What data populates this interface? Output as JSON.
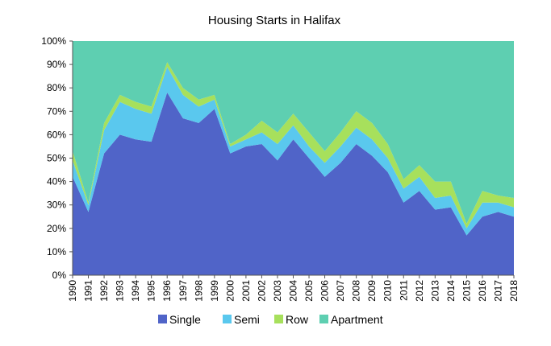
{
  "chart_data": {
    "type": "area",
    "stacked": true,
    "title": "Housing Starts in Halifax",
    "x": [
      "1990",
      "1991",
      "1992",
      "1993",
      "1994",
      "1995",
      "1996",
      "1997",
      "1998",
      "1999",
      "2000",
      "2001",
      "2002",
      "2003",
      "2004",
      "2005",
      "2006",
      "2007",
      "2008",
      "2009",
      "2010",
      "2011",
      "2012",
      "2013",
      "2014",
      "2015",
      "2016",
      "2017",
      "2018"
    ],
    "y_ticks": [
      "0%",
      "10%",
      "20%",
      "30%",
      "40%",
      "50%",
      "60%",
      "70%",
      "80%",
      "90%",
      "100%"
    ],
    "ylim": [
      0,
      100
    ],
    "grid": false,
    "legend_position": "bottom",
    "series": [
      {
        "name": "Single",
        "color": "#5064c8",
        "values": [
          42,
          27,
          52,
          60,
          58,
          57,
          78,
          67,
          65,
          71,
          52,
          55,
          56,
          49,
          58,
          50,
          42,
          48,
          56,
          51,
          44,
          31,
          36,
          28,
          29,
          17,
          25,
          27,
          25
        ]
      },
      {
        "name": "Semi",
        "color": "#5ac8ee",
        "values": [
          7,
          3,
          10,
          14,
          13,
          12,
          11,
          10,
          7,
          4,
          3,
          3,
          5,
          7,
          6,
          5,
          6,
          7,
          7,
          7,
          6,
          6,
          6,
          5,
          5,
          3,
          6,
          4,
          4
        ]
      },
      {
        "name": "Row",
        "color": "#a7e05c",
        "values": [
          4,
          1,
          3,
          3,
          3,
          3,
          2,
          3,
          3,
          2,
          1,
          2,
          5,
          5,
          5,
          6,
          5,
          6,
          7,
          7,
          6,
          4,
          5,
          7,
          6,
          2,
          5,
          3,
          4
        ]
      },
      {
        "name": "Apartment",
        "color": "#5ecfb1",
        "values": [
          47,
          69,
          35,
          23,
          26,
          28,
          9,
          20,
          25,
          23,
          44,
          40,
          34,
          39,
          31,
          39,
          47,
          39,
          30,
          35,
          44,
          59,
          53,
          60,
          60,
          78,
          64,
          66,
          67
        ]
      }
    ]
  }
}
